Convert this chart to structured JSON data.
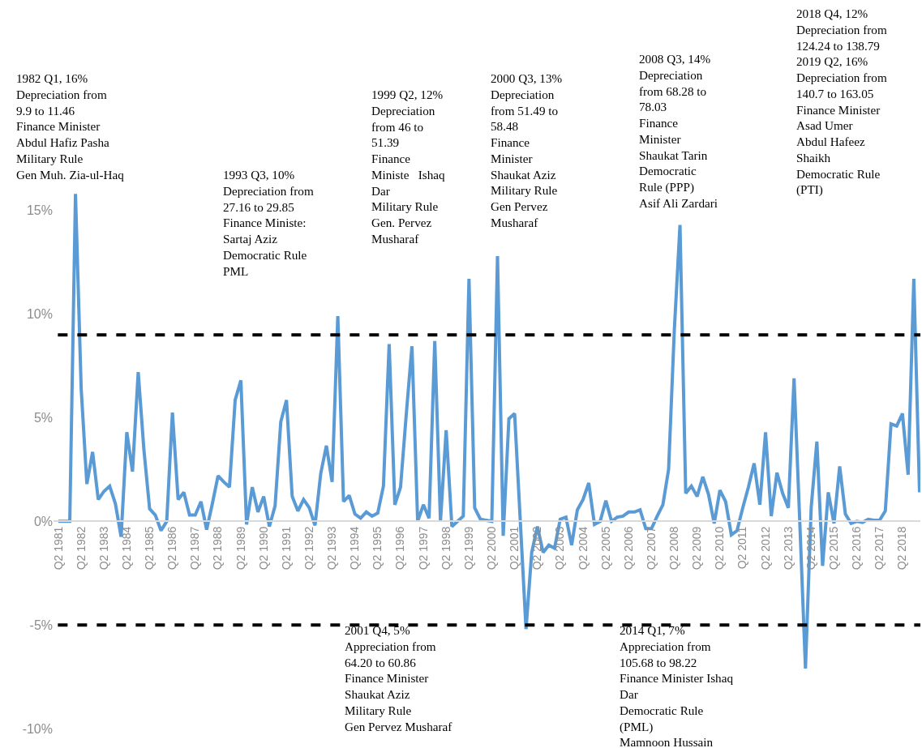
{
  "chart_data": {
    "type": "line",
    "categories": [
      "Q2 1981",
      null,
      null,
      null,
      "Q2 1982",
      null,
      null,
      null,
      "Q2 1983",
      null,
      null,
      null,
      "Q2 1984",
      null,
      null,
      null,
      "Q2 1985",
      null,
      null,
      null,
      "Q2 1986",
      null,
      null,
      null,
      "Q2 1987",
      null,
      null,
      null,
      "Q2 1988",
      null,
      null,
      null,
      "Q2 1989",
      null,
      null,
      null,
      "Q2 1990",
      null,
      null,
      null,
      "Q2 1991",
      null,
      null,
      null,
      "Q2 1992",
      null,
      null,
      null,
      "Q2 1993",
      null,
      null,
      null,
      "Q2 1994",
      null,
      null,
      null,
      "Q2 1995",
      null,
      null,
      null,
      "Q2 1996",
      null,
      null,
      null,
      "Q2 1997",
      null,
      null,
      null,
      "Q2 1998",
      null,
      null,
      null,
      "Q2 1999",
      null,
      null,
      null,
      "Q2 2000",
      null,
      null,
      null,
      "Q2 2001",
      null,
      null,
      null,
      "Q2 2002",
      null,
      null,
      null,
      "Q2 2003",
      null,
      null,
      null,
      "Q2 2004",
      null,
      null,
      null,
      "Q2 2005",
      null,
      null,
      null,
      "Q2 2006",
      null,
      null,
      null,
      "Q2 2007",
      null,
      null,
      null,
      "Q2 2008",
      null,
      null,
      null,
      "Q2 2009",
      null,
      null,
      null,
      "Q2 2010",
      null,
      null,
      null,
      "Q2 2011",
      null,
      null,
      null,
      "Q2 2012",
      null,
      null,
      null,
      "Q2 2013",
      null,
      null,
      null,
      "Q2 2014",
      null,
      null,
      null,
      "Q2 2015",
      null,
      null,
      null,
      "Q2 2016",
      null,
      null,
      null,
      "Q2 2017",
      null,
      null,
      null,
      "Q2 2018",
      null,
      null,
      null
    ],
    "series": [
      {
        "color": "#5b9bd5",
        "values": [
          0,
          0,
          0,
          15.8,
          6.4,
          1.8,
          3.35,
          1.05,
          1.45,
          1.7,
          0.85,
          -0.75,
          4.3,
          2.4,
          7.2,
          3.45,
          0.6,
          0.3,
          -0.45,
          0,
          5.25,
          1.05,
          1.4,
          0.3,
          0.3,
          0.95,
          -0.4,
          0.85,
          2.2,
          1.9,
          1.65,
          5.85,
          6.8,
          -0.15,
          1.65,
          0.45,
          1.2,
          -0.25,
          0.75,
          4.8,
          5.85,
          1.2,
          0.5,
          1.05,
          0.65,
          -0.2,
          2.3,
          3.65,
          1.9,
          9.9,
          0.95,
          1.25,
          0.35,
          0.15,
          0.45,
          0.25,
          0.4,
          1.7,
          8.55,
          0.8,
          1.65,
          5.15,
          8.45,
          0,
          0.8,
          0.15,
          8.7,
          0,
          4.4,
          -0.25,
          0,
          0.25,
          11.7,
          0.65,
          0.1,
          0.05,
          0,
          12.8,
          -0.7,
          4.95,
          5.2,
          0,
          -5.2,
          -1.5,
          -0.25,
          -1.5,
          -1.15,
          -1.3,
          0.1,
          0.2,
          -1.15,
          0.55,
          1.05,
          1.85,
          -0.15,
          0,
          1.0,
          0,
          0.2,
          0.25,
          0.45,
          0.45,
          0.55,
          -0.35,
          -0.35,
          0.25,
          0.8,
          2.5,
          9.2,
          14.3,
          1.35,
          1.7,
          1.2,
          2.15,
          1.3,
          -0.1,
          1.5,
          0.95,
          -0.65,
          -0.45,
          0.65,
          1.65,
          2.8,
          0.8,
          4.3,
          0.25,
          2.35,
          1.35,
          0.65,
          6.9,
          0,
          -7.1,
          0.65,
          3.85,
          -2.15,
          1.4,
          -0.1,
          2.65,
          0.35,
          -0.1,
          0,
          -0.05,
          0.1,
          0.05,
          0.05,
          0.5,
          4.7,
          4.6,
          5.2,
          2.25,
          11.7,
          1.4
        ]
      }
    ],
    "ylim": [
      -10,
      25
    ],
    "yticks": [
      {
        "value": -10,
        "label": "-10%"
      },
      {
        "value": -5,
        "label": "-5%"
      },
      {
        "value": 0,
        "label": "0%"
      },
      {
        "value": 5,
        "label": "5%"
      },
      {
        "value": 10,
        "label": "10%"
      },
      {
        "value": 15,
        "label": "15%"
      }
    ],
    "ref_lines": [
      {
        "axis": "y",
        "value": 9,
        "color": "#000000",
        "line_style": "dashed"
      },
      {
        "axis": "y",
        "value": -5,
        "color": "#000000",
        "line_style": "dashed"
      }
    ],
    "annotations": [
      "1982 Q1, 16%\nDepreciation from\n9.9 to 11.46\nFinance Minister\nAbdul Hafiz Pasha\nMilitary Rule\nGen Muh. Zia-ul-Haq",
      "1993 Q3, 10%\nDepreciation from\n27.16 to 29.85\nFinance Ministe:\nSartaj Aziz\nDemocratic Rule\nPML",
      "1999 Q2, 12%\nDepreciation\nfrom 46 to\n51.39\nFinance\nMiniste   Ishaq\nDar\nMilitary Rule\nGen. Pervez\nMusharaf",
      "2000 Q3, 13%\nDepreciation\nfrom 51.49 to\n58.48\nFinance\nMinister\nShaukat Aziz\nMilitary Rule\nGen Pervez\nMusharaf",
      "2008 Q3, 14%\nDepreciation\nfrom 68.28 to\n78.03\nFinance\nMinister\nShaukat Tarin\nDemocratic\nRule (PPP)\nAsif Ali Zardari",
      "2018 Q4, 12%\nDepreciation from\n124.24 to 138.79\n2019 Q2, 16%\nDepreciation from\n140.7 to 163.05\nFinance Minister\nAsad Umer\nAbdul Hafeez\nShaikh\nDemocratic Rule\n(PTI)",
      "2001 Q4, 5%\nAppreciation from\n64.20 to 60.86\nFinance Minister\nShaukat Aziz\nMilitary Rule\nGen Pervez Musharaf",
      "2014 Q1, 7%\nAppreciation from\n105.68 to 98.22\nFinance Minister Ishaq\nDar\nDemocratic Rule\n(PML)\nMamnoon Hussain"
    ],
    "grid": false,
    "marker": "none",
    "line_style": "solid"
  }
}
